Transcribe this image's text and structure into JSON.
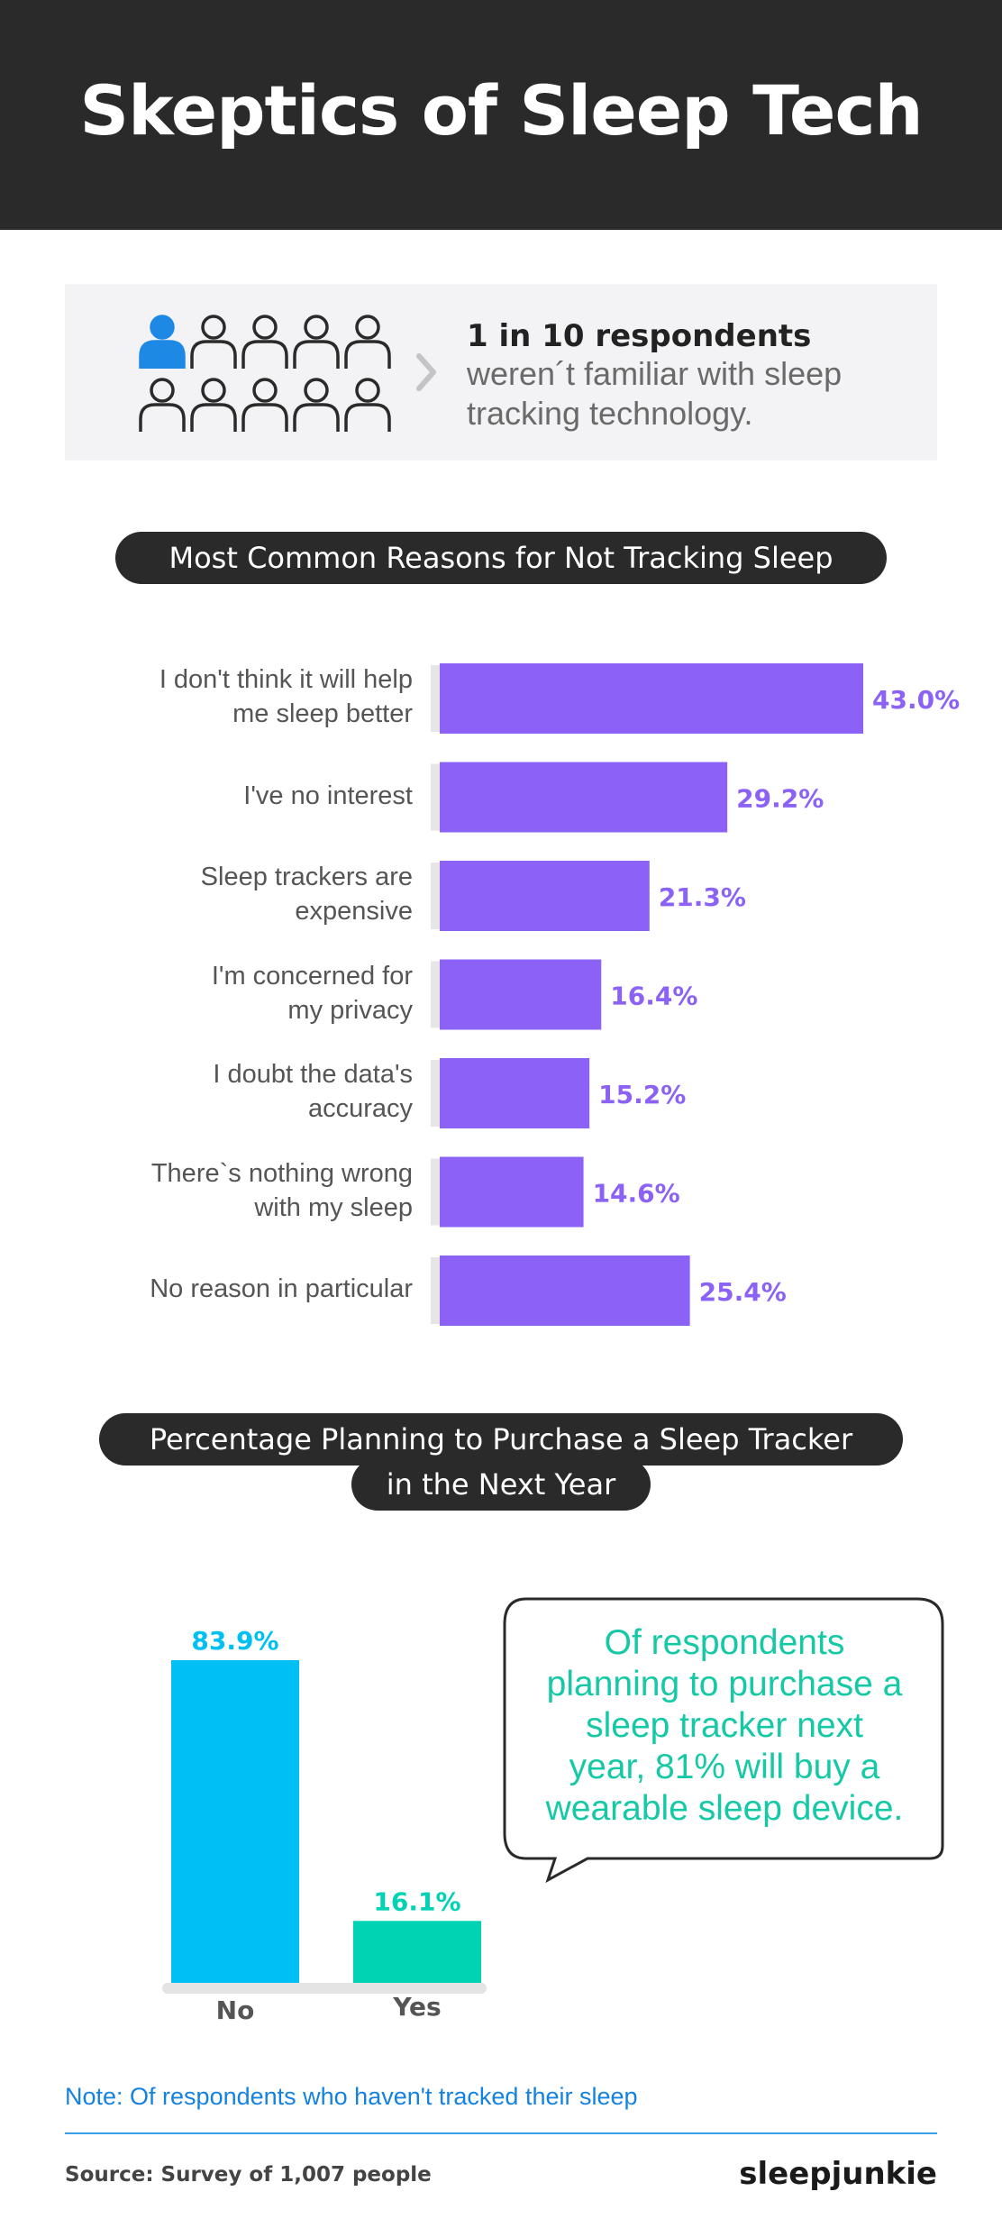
{
  "header": {
    "title": "Skeptics of Sleep Tech"
  },
  "stat": {
    "highlight": "1 in 10 respondents",
    "line1": "weren´t familiar with sleep",
    "line2": "tracking technology.",
    "people_total": 10,
    "people_highlighted": 1,
    "highlight_color": "#1e88e5",
    "icon": "person-icon",
    "chevron_icon": "chevron-right-icon"
  },
  "colors": {
    "bar": "#8b62f5",
    "bar_label": "#8b62f5",
    "no": "#00bff2",
    "yes": "#00d3b4",
    "bubble_text": "#16c9a6",
    "accent_blue": "#1582e0",
    "dark": "#2a2a2a"
  },
  "chart_data": [
    {
      "type": "bar",
      "orientation": "horizontal",
      "title": "Most Common Reasons for Not Tracking Sleep",
      "categories": [
        [
          "I don't think it will help",
          "me sleep better"
        ],
        [
          "I've no interest"
        ],
        [
          "Sleep trackers are",
          "expensive"
        ],
        [
          "I'm concerned for",
          "my privacy"
        ],
        [
          "I doubt the data's",
          "accuracy"
        ],
        [
          "There`s nothing wrong",
          "with my sleep"
        ],
        [
          "No reason in particular"
        ]
      ],
      "values": [
        43.0,
        29.2,
        21.3,
        16.4,
        15.2,
        14.6,
        25.4
      ],
      "value_labels": [
        "43.0%",
        "29.2%",
        "21.3%",
        "16.4%",
        "15.2%",
        "14.6%",
        "25.4%"
      ],
      "xlim": [
        0,
        43.0
      ],
      "grid": false,
      "legend": "none"
    },
    {
      "type": "bar",
      "orientation": "vertical",
      "title_lines": [
        "Percentage Planning to Purchase a Sleep Tracker",
        "in the Next Year"
      ],
      "categories": [
        "No",
        "Yes"
      ],
      "values": [
        83.9,
        16.1
      ],
      "value_labels": [
        "83.9%",
        "16.1%"
      ],
      "ylim": [
        0,
        83.9
      ],
      "grid": false,
      "legend": "none",
      "annotation_lines": [
        "Of respondents",
        "planning to purchase a",
        "sleep tracker next",
        "year, 81% will buy a",
        "wearable sleep device."
      ]
    }
  ],
  "footer": {
    "note": "Note: Of respondents who haven't tracked their sleep",
    "source": "Source: Survey of 1,007 people",
    "brand": "sleepjunkie"
  }
}
